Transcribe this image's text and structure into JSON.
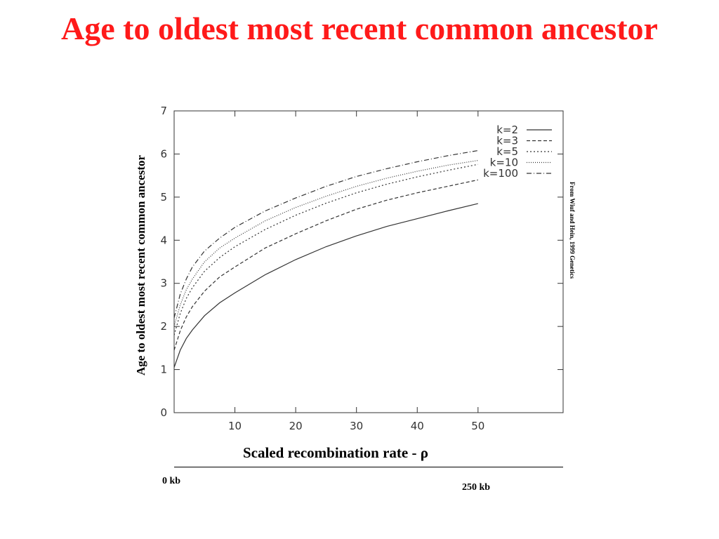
{
  "slide": {
    "title": "Age to oldest most recent common ancestor",
    "title_color": "#ff1a1a",
    "credit": "From Wiuf and Hein, 1999 Genetics",
    "scale": {
      "start_label": "0  kb",
      "end_label": "250  kb"
    }
  },
  "chart_data": {
    "type": "line",
    "title": "",
    "xlabel": "Scaled recombination rate - ρ",
    "ylabel": "Age to oldest most recent common ancestor",
    "xlim": [
      0,
      64
    ],
    "ylim": [
      0,
      7
    ],
    "xticks": [
      10,
      20,
      30,
      40,
      50
    ],
    "yticks": [
      0,
      1,
      2,
      3,
      4,
      5,
      6,
      7
    ],
    "grid": false,
    "legend_position": "top-right",
    "x": [
      0,
      1,
      2,
      3,
      5,
      7.5,
      10,
      15,
      20,
      25,
      30,
      35,
      40,
      45,
      50
    ],
    "series": [
      {
        "name": "k=2",
        "dash": "",
        "values": [
          1.05,
          1.45,
          1.72,
          1.92,
          2.25,
          2.55,
          2.78,
          3.2,
          3.55,
          3.85,
          4.1,
          4.32,
          4.5,
          4.68,
          4.85
        ]
      },
      {
        "name": "k=3",
        "dash": "5,3",
        "values": [
          1.45,
          1.9,
          2.22,
          2.46,
          2.82,
          3.15,
          3.38,
          3.82,
          4.15,
          4.45,
          4.72,
          4.93,
          5.1,
          5.25,
          5.4
        ]
      },
      {
        "name": "k=5",
        "dash": "2,3",
        "values": [
          1.8,
          2.3,
          2.65,
          2.9,
          3.28,
          3.6,
          3.85,
          4.25,
          4.58,
          4.86,
          5.1,
          5.3,
          5.47,
          5.62,
          5.76
        ]
      },
      {
        "name": "k=10",
        "dash": "1,2",
        "values": [
          2.0,
          2.5,
          2.85,
          3.1,
          3.5,
          3.82,
          4.05,
          4.45,
          4.76,
          5.02,
          5.25,
          5.44,
          5.6,
          5.74,
          5.85
        ]
      },
      {
        "name": "k=100",
        "dash": "7,3,1,3",
        "values": [
          2.2,
          2.75,
          3.1,
          3.38,
          3.75,
          4.05,
          4.3,
          4.68,
          4.98,
          5.25,
          5.48,
          5.66,
          5.82,
          5.96,
          6.08
        ]
      }
    ]
  }
}
